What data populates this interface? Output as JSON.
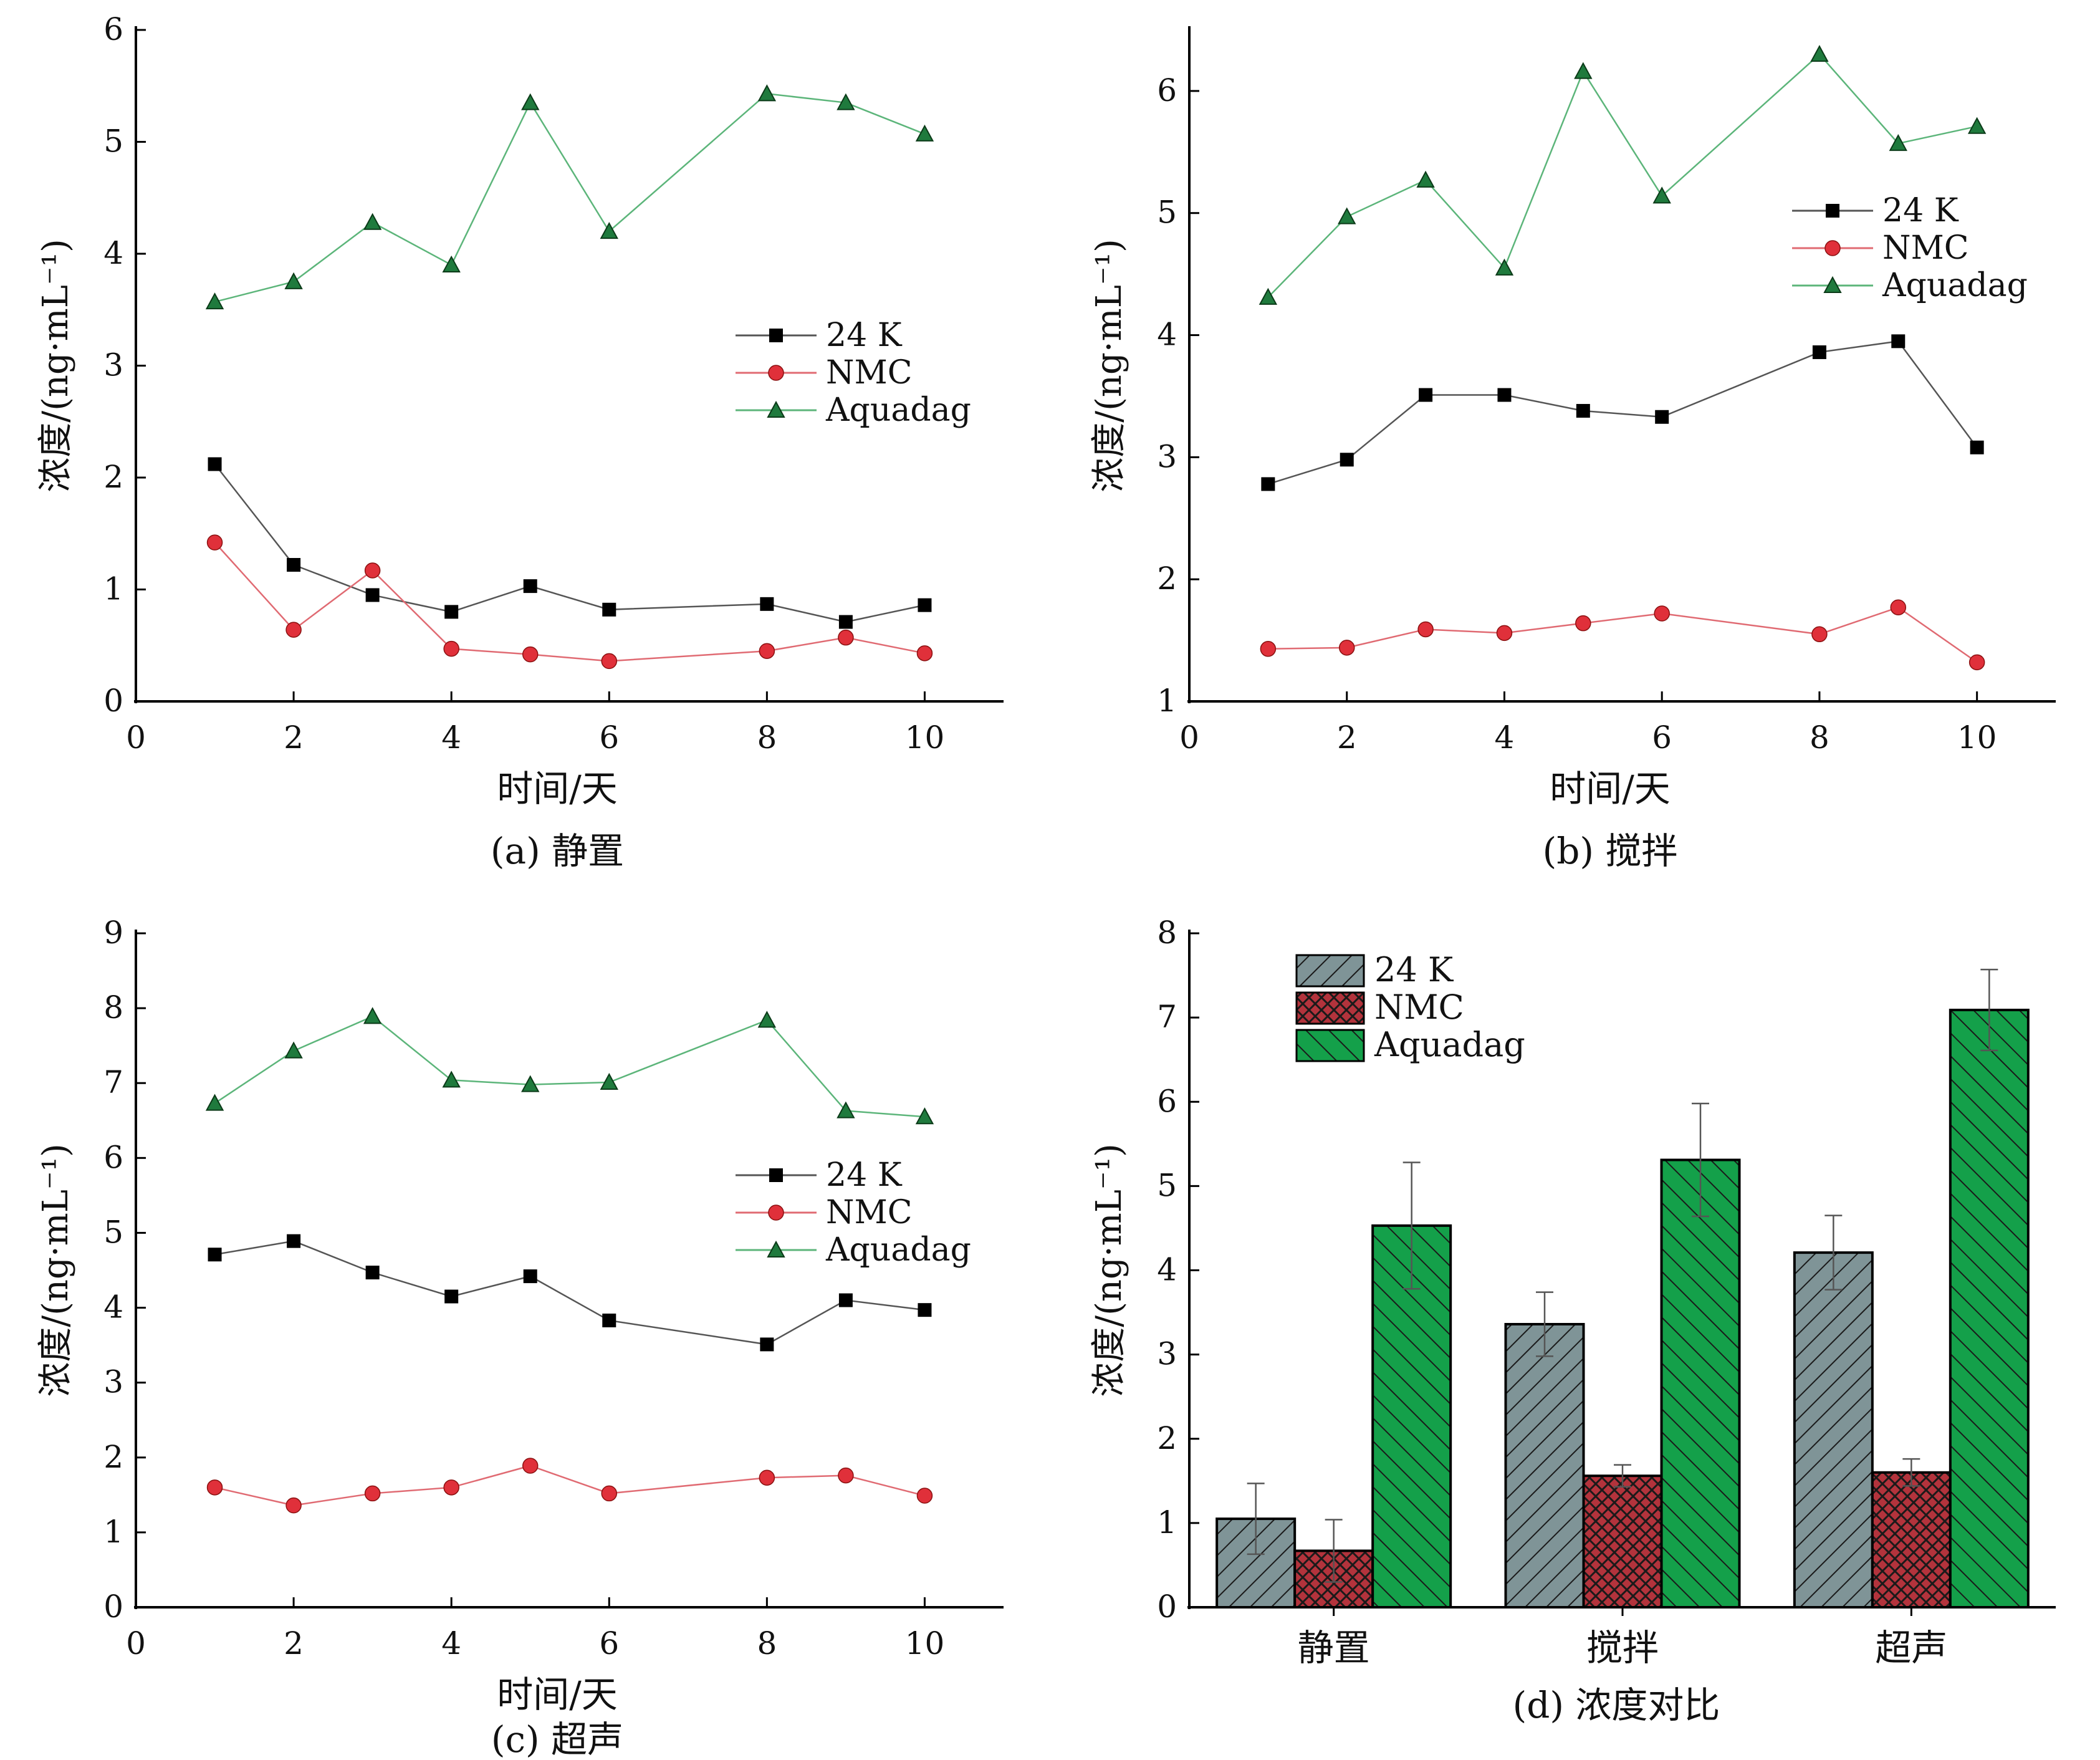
{
  "legend_labels": [
    "24 K",
    "NMC",
    "Aquadag"
  ],
  "colors": {
    "24K": "#000000",
    "NMC": "#e0303a",
    "Aquadag": "#1f9e4a",
    "line24K": "#555555",
    "lineNMC": "#e06a72",
    "lineAquadag": "#5cb57a",
    "bar24K": "#7f9497",
    "barNMC": "#b3333c",
    "barAquadag": "#14a04a"
  },
  "chart_data": [
    {
      "type": "line",
      "caption": "(a) 静置",
      "xlabel": "时间/天",
      "ylabel": "浓度/(ng·mL⁻¹)",
      "xlim": [
        0,
        11
      ],
      "ylim": [
        0,
        6
      ],
      "xticks": [
        0,
        2,
        4,
        6,
        8,
        10
      ],
      "yticks": [
        0,
        1,
        2,
        3,
        4,
        5,
        6
      ],
      "legend_position": "center-right",
      "x": [
        1,
        2,
        3,
        4,
        5,
        6,
        8,
        9,
        10
      ],
      "series": [
        {
          "name": "24 K",
          "values": [
            2.12,
            1.22,
            0.95,
            0.8,
            1.03,
            0.82,
            0.87,
            0.71,
            0.86
          ]
        },
        {
          "name": "NMC",
          "values": [
            1.42,
            0.64,
            1.17,
            0.47,
            0.42,
            0.36,
            0.45,
            0.57,
            0.43
          ]
        },
        {
          "name": "Aquadag",
          "values": [
            3.57,
            3.75,
            4.28,
            3.9,
            5.35,
            4.2,
            5.43,
            5.35,
            5.07
          ]
        }
      ]
    },
    {
      "type": "line",
      "caption": "(b) 搅拌",
      "xlabel": "时间/天",
      "ylabel": "浓度/(ng·mL⁻¹)",
      "xlim": [
        0,
        11
      ],
      "ylim": [
        1,
        6.5
      ],
      "xticks": [
        0,
        2,
        4,
        6,
        8,
        10
      ],
      "yticks": [
        1,
        2,
        3,
        4,
        5,
        6
      ],
      "legend_position": "top-right",
      "x": [
        1,
        2,
        3,
        4,
        5,
        6,
        8,
        9,
        10
      ],
      "series": [
        {
          "name": "24 K",
          "values": [
            2.78,
            2.98,
            3.51,
            3.51,
            3.38,
            3.33,
            3.86,
            3.95,
            3.08
          ]
        },
        {
          "name": "NMC",
          "values": [
            1.43,
            1.44,
            1.59,
            1.56,
            1.64,
            1.72,
            1.55,
            1.77,
            1.32
          ]
        },
        {
          "name": "Aquadag",
          "values": [
            4.31,
            4.97,
            5.27,
            4.55,
            6.16,
            5.14,
            6.3,
            5.57,
            5.71
          ]
        }
      ]
    },
    {
      "type": "line",
      "caption": "(c) 超声",
      "xlabel": "时间/天",
      "ylabel": "浓度/(ng·mL⁻¹)",
      "xlim": [
        0,
        11
      ],
      "ylim": [
        0,
        9
      ],
      "xticks": [
        0,
        2,
        4,
        6,
        8,
        10
      ],
      "yticks": [
        0,
        1,
        2,
        3,
        4,
        5,
        6,
        7,
        8,
        9
      ],
      "legend_position": "center-right",
      "x": [
        1,
        2,
        3,
        4,
        5,
        6,
        8,
        9,
        10
      ],
      "series": [
        {
          "name": "24 K",
          "values": [
            4.71,
            4.89,
            4.47,
            4.15,
            4.42,
            3.83,
            3.51,
            4.1,
            3.97
          ]
        },
        {
          "name": "NMC",
          "values": [
            1.6,
            1.36,
            1.52,
            1.6,
            1.89,
            1.52,
            1.73,
            1.76,
            1.49
          ]
        },
        {
          "name": "Aquadag",
          "values": [
            6.73,
            7.43,
            7.89,
            7.04,
            6.98,
            7.01,
            7.84,
            6.63,
            6.55
          ]
        }
      ]
    },
    {
      "type": "bar",
      "caption": "(d) 浓度对比",
      "xlabel": "",
      "ylabel": "浓度/(ng·mL⁻¹)",
      "ylim": [
        0,
        8
      ],
      "yticks": [
        0,
        1,
        2,
        3,
        4,
        5,
        6,
        7,
        8
      ],
      "legend_position": "top-left",
      "categories": [
        "静置",
        "搅拌",
        "超声"
      ],
      "series": [
        {
          "name": "24 K",
          "values": [
            1.05,
            3.36,
            4.21
          ],
          "errors": [
            0.42,
            0.38,
            0.44
          ]
        },
        {
          "name": "NMC",
          "values": [
            0.67,
            1.56,
            1.6
          ],
          "errors": [
            0.37,
            0.13,
            0.16
          ]
        },
        {
          "name": "Aquadag",
          "values": [
            4.53,
            5.31,
            7.09
          ],
          "errors": [
            0.75,
            0.67,
            0.48
          ]
        }
      ]
    }
  ]
}
